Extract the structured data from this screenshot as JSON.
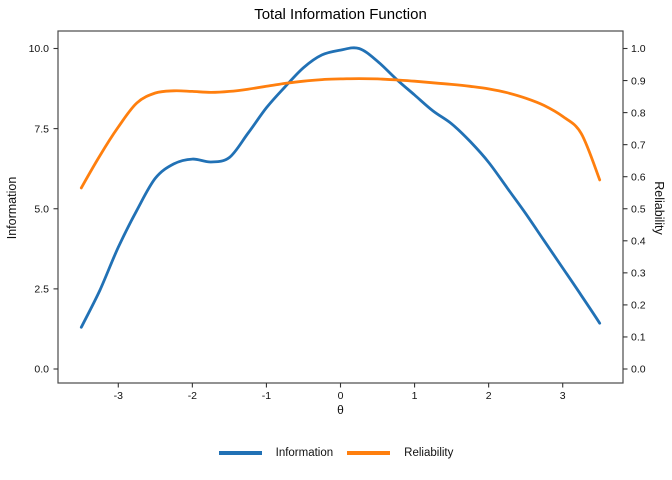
{
  "title": "Total Information Function",
  "chart_data": {
    "type": "line",
    "title": "Total Information Function",
    "xlabel": "θ",
    "ylabel_left": "Information",
    "ylabel_right": "Reliability",
    "xlim": [
      -3.82,
      3.82
    ],
    "ylim_left": [
      0,
      10
    ],
    "ylim_right": [
      0,
      1
    ],
    "grid": false,
    "legend_position": "bottom",
    "x_ticks": [
      {
        "value": -3,
        "label": "-3"
      },
      {
        "value": -2,
        "label": "-2"
      },
      {
        "value": -1,
        "label": "-1"
      },
      {
        "value": 0,
        "label": "0"
      },
      {
        "value": 1,
        "label": "1"
      },
      {
        "value": 2,
        "label": "2"
      },
      {
        "value": 3,
        "label": "3"
      }
    ],
    "y_ticks_left": [
      {
        "value": 0,
        "label": "0.0"
      },
      {
        "value": 2.5,
        "label": "2.5"
      },
      {
        "value": 5,
        "label": "5.0"
      },
      {
        "value": 7.5,
        "label": "7.5"
      },
      {
        "value": 10,
        "label": "10.0"
      }
    ],
    "y_ticks_right": [
      {
        "value": 0.0,
        "label": "0.0"
      },
      {
        "value": 0.1,
        "label": "0.1"
      },
      {
        "value": 0.2,
        "label": "0.2"
      },
      {
        "value": 0.3,
        "label": "0.3"
      },
      {
        "value": 0.4,
        "label": "0.4"
      },
      {
        "value": 0.5,
        "label": "0.5"
      },
      {
        "value": 0.6,
        "label": "0.6"
      },
      {
        "value": 0.7,
        "label": "0.7"
      },
      {
        "value": 0.8,
        "label": "0.8"
      },
      {
        "value": 0.9,
        "label": "0.9"
      },
      {
        "value": 1.0,
        "label": "1.0"
      }
    ],
    "x": [
      -3.5,
      -3.25,
      -3,
      -2.75,
      -2.5,
      -2.25,
      -2,
      -1.75,
      -1.5,
      -1.25,
      -1,
      -0.75,
      -0.5,
      -0.25,
      0,
      0.25,
      0.5,
      0.75,
      1,
      1.25,
      1.5,
      1.75,
      2,
      2.25,
      2.5,
      2.75,
      3,
      3.25,
      3.5
    ],
    "series": [
      {
        "name": "Information",
        "yaxis": "left",
        "color": "#2171b5",
        "values": [
          1.3,
          2.45,
          3.8,
          4.95,
          5.95,
          6.4,
          6.55,
          6.46,
          6.6,
          7.35,
          8.15,
          8.8,
          9.4,
          9.8,
          9.95,
          10.0,
          9.6,
          9.05,
          8.55,
          8.05,
          7.65,
          7.1,
          6.45,
          5.65,
          4.85,
          4.0,
          3.15,
          2.3,
          1.43
        ]
      },
      {
        "name": "Reliability",
        "yaxis": "right",
        "color": "#ff7f0e",
        "values": [
          0.565,
          0.665,
          0.755,
          0.83,
          0.861,
          0.868,
          0.866,
          0.863,
          0.866,
          0.873,
          0.882,
          0.891,
          0.898,
          0.903,
          0.905,
          0.906,
          0.905,
          0.902,
          0.898,
          0.893,
          0.888,
          0.882,
          0.874,
          0.862,
          0.845,
          0.822,
          0.788,
          0.735,
          0.59
        ]
      }
    ]
  },
  "legend": {
    "items": [
      {
        "label": "Information",
        "color": "#2171b5"
      },
      {
        "label": "Reliability",
        "color": "#ff7f0e"
      }
    ]
  },
  "style": {
    "panel_border_color": "#4a4a4a",
    "tick_color": "#333333",
    "text_color": "#111111"
  }
}
